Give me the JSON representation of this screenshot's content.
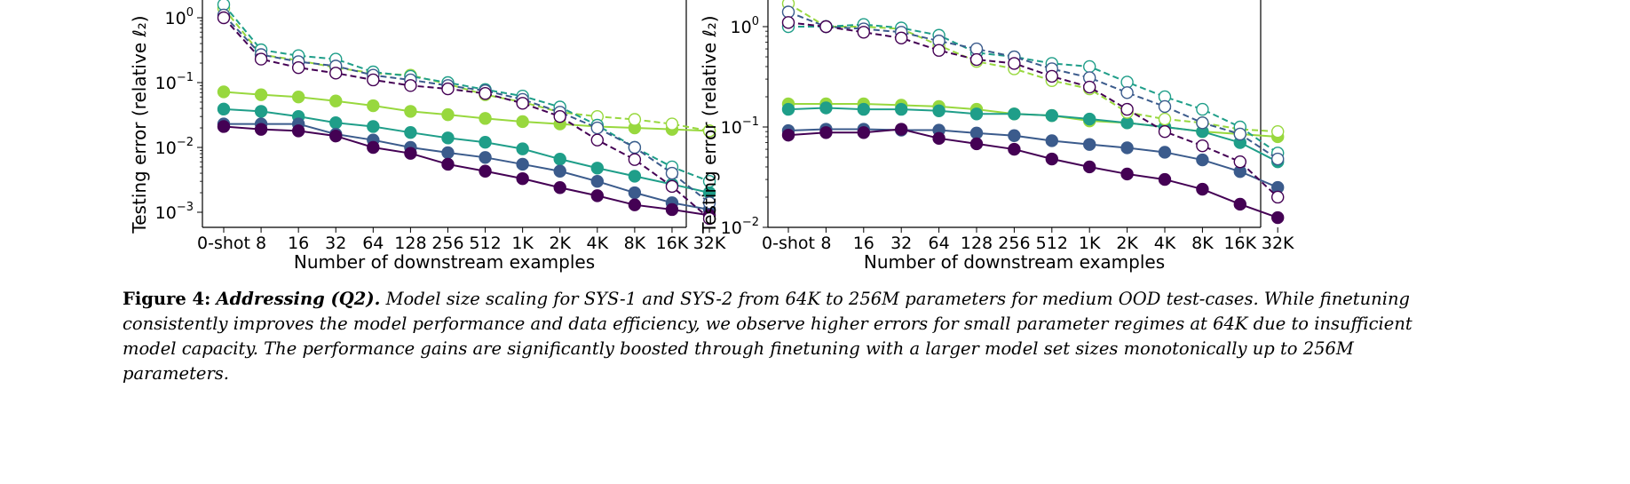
{
  "x_categories": [
    "0-shot",
    "8",
    "16",
    "32",
    "64",
    "128",
    "256",
    "512",
    "1K",
    "2K",
    "4K",
    "8K",
    "16K",
    "32K"
  ],
  "colors": {
    "purple": "#440154",
    "blue": "#3b5b8c",
    "teal": "#1f9e89",
    "lime": "#98d83e"
  },
  "chart_data": [
    {
      "type": "line",
      "xlabel": "Number of downstream examples",
      "ylabel": "Testing error (relative ℓ2)",
      "yscale": "log",
      "ylim": [
        0.00055,
        2.0
      ],
      "yticks": [
        "10^0",
        "10^-1",
        "10^-2",
        "10^-3"
      ],
      "grid": false,
      "series": [
        {
          "color": "lime",
          "style": "solid",
          "marker": "filled",
          "values": [
            0.072,
            0.065,
            0.06,
            0.052,
            0.044,
            0.036,
            0.032,
            0.028,
            0.025,
            0.023,
            0.021,
            0.02,
            0.019,
            0.018
          ]
        },
        {
          "color": "teal",
          "style": "solid",
          "marker": "filled",
          "values": [
            0.039,
            0.036,
            0.03,
            0.024,
            0.021,
            0.017,
            0.014,
            0.012,
            0.0095,
            0.0066,
            0.0048,
            0.0036,
            0.0027,
            0.002
          ]
        },
        {
          "color": "blue",
          "style": "solid",
          "marker": "filled",
          "values": [
            0.023,
            0.023,
            0.023,
            0.016,
            0.013,
            0.01,
            0.0083,
            0.007,
            0.0055,
            0.0043,
            0.003,
            0.002,
            0.0014,
            0.0011
          ]
        },
        {
          "color": "purple",
          "style": "solid",
          "marker": "filled",
          "values": [
            0.021,
            0.019,
            0.018,
            0.015,
            0.01,
            0.0081,
            0.0055,
            0.0043,
            0.0033,
            0.0024,
            0.0018,
            0.0013,
            0.0011,
            0.0009
          ]
        },
        {
          "color": "lime",
          "style": "dashed",
          "marker": "open",
          "values": [
            1.4,
            0.27,
            0.22,
            0.17,
            0.14,
            0.13,
            0.095,
            0.065,
            0.05,
            0.035,
            0.03,
            0.027,
            0.023,
            0.018
          ]
        },
        {
          "color": "teal",
          "style": "dashed",
          "marker": "open",
          "values": [
            1.6,
            0.32,
            0.26,
            0.23,
            0.146,
            0.125,
            0.1,
            0.078,
            0.062,
            0.042,
            0.022,
            0.01,
            0.005,
            0.003
          ]
        },
        {
          "color": "blue",
          "style": "dashed",
          "marker": "open",
          "values": [
            1.1,
            0.27,
            0.21,
            0.18,
            0.13,
            0.11,
            0.09,
            0.075,
            0.055,
            0.035,
            0.02,
            0.01,
            0.004,
            0.0014
          ]
        },
        {
          "color": "purple",
          "style": "dashed",
          "marker": "open",
          "values": [
            1.0,
            0.23,
            0.17,
            0.14,
            0.11,
            0.09,
            0.08,
            0.068,
            0.048,
            0.03,
            0.013,
            0.0065,
            0.0025,
            0.0008
          ]
        }
      ]
    },
    {
      "type": "line",
      "xlabel": "Number of downstream examples",
      "ylabel": "Testing error (relative ℓ2)",
      "yscale": "log",
      "ylim": [
        0.01,
        1.9
      ],
      "yticks": [
        "10^0",
        "10^-1",
        "10^-2"
      ],
      "grid": false,
      "series": [
        {
          "color": "lime",
          "style": "solid",
          "marker": "filled",
          "values": [
            0.17,
            0.17,
            0.17,
            0.165,
            0.16,
            0.15,
            0.135,
            0.13,
            0.115,
            0.11,
            0.1,
            0.09,
            0.085,
            0.08
          ]
        },
        {
          "color": "teal",
          "style": "solid",
          "marker": "filled",
          "values": [
            0.15,
            0.155,
            0.15,
            0.15,
            0.145,
            0.135,
            0.135,
            0.13,
            0.12,
            0.11,
            0.1,
            0.09,
            0.07,
            0.045
          ]
        },
        {
          "color": "blue",
          "style": "solid",
          "marker": "filled",
          "values": [
            0.092,
            0.095,
            0.095,
            0.093,
            0.093,
            0.087,
            0.082,
            0.073,
            0.067,
            0.062,
            0.056,
            0.047,
            0.036,
            0.025
          ]
        },
        {
          "color": "purple",
          "style": "solid",
          "marker": "filled",
          "values": [
            0.083,
            0.088,
            0.088,
            0.095,
            0.077,
            0.068,
            0.06,
            0.048,
            0.04,
            0.034,
            0.03,
            0.024,
            0.017,
            0.0125
          ]
        },
        {
          "color": "lime",
          "style": "dashed",
          "marker": "open",
          "values": [
            1.7,
            1.0,
            1.0,
            0.95,
            0.65,
            0.45,
            0.38,
            0.29,
            0.24,
            0.14,
            0.12,
            0.11,
            0.095,
            0.09
          ]
        },
        {
          "color": "teal",
          "style": "dashed",
          "marker": "open",
          "values": [
            1.0,
            1.0,
            1.05,
            0.97,
            0.82,
            0.55,
            0.5,
            0.43,
            0.4,
            0.28,
            0.2,
            0.15,
            0.1,
            0.055
          ]
        },
        {
          "color": "blue",
          "style": "dashed",
          "marker": "open",
          "values": [
            1.4,
            1.0,
            0.95,
            0.88,
            0.72,
            0.6,
            0.5,
            0.38,
            0.31,
            0.22,
            0.16,
            0.11,
            0.085,
            0.048
          ]
        },
        {
          "color": "purple",
          "style": "dashed",
          "marker": "open",
          "values": [
            1.1,
            1.0,
            0.88,
            0.77,
            0.58,
            0.47,
            0.43,
            0.32,
            0.25,
            0.15,
            0.09,
            0.065,
            0.045,
            0.02
          ]
        }
      ]
    }
  ],
  "caption": {
    "figure_label": "Figure 4:",
    "title": "Addressing (Q2).",
    "line1": "Model size scaling for SYS-1 and SYS-2 from 64K to 256M parameters for medium OOD test-cases. While finetuning",
    "line2": "consistently improves the model performance and data efficiency, we observe higher errors for small parameter regimes at 64K due to insufficient",
    "line3": "model capacity. The performance gains are significantly boosted through finetuning with a larger model set sizes monotonically up to 256M",
    "line4": "parameters."
  }
}
